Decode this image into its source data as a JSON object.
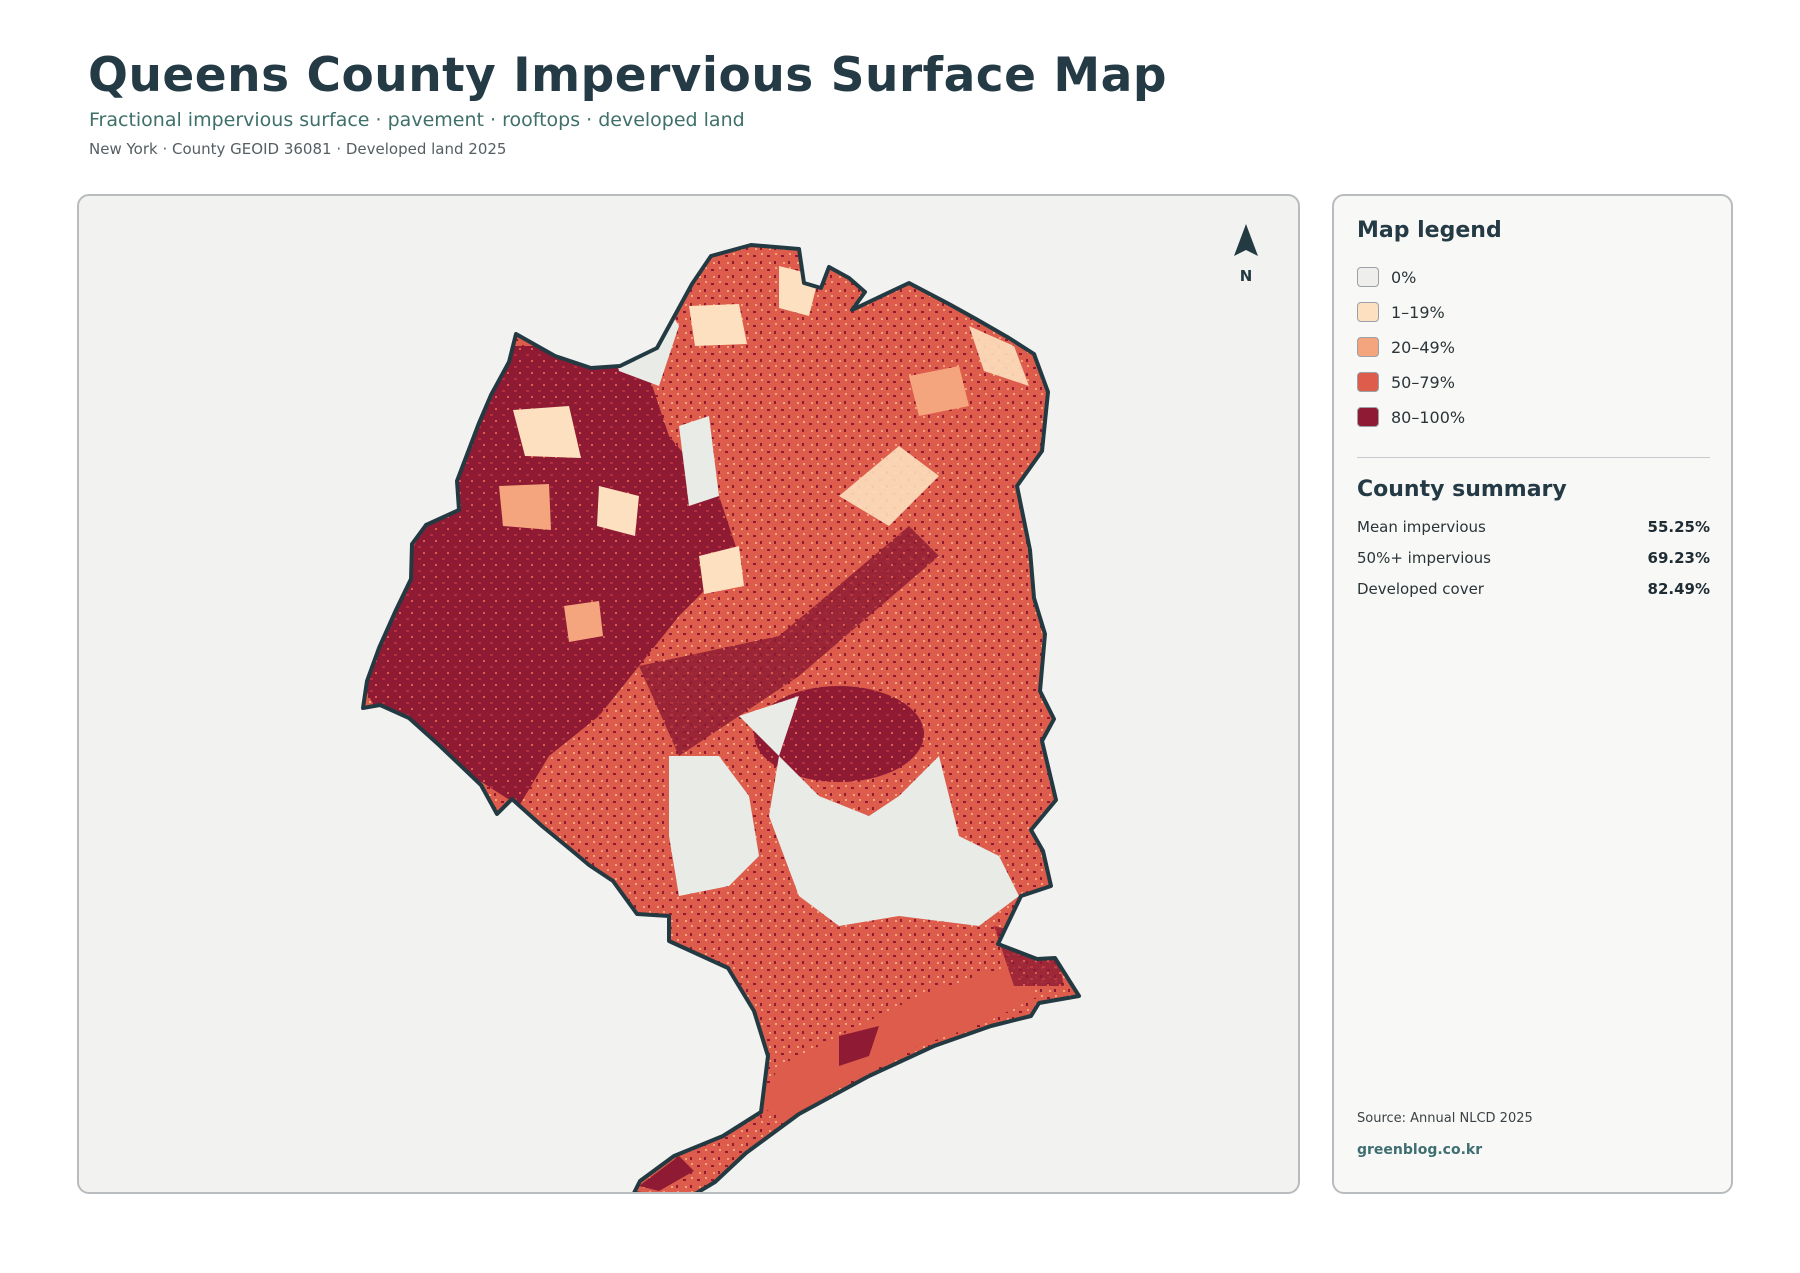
{
  "header": {
    "title": "Queens County Impervious Surface Map",
    "subtitle": "Fractional impervious surface · pavement · rooftops · developed land",
    "meta": "New York · County GEOID 36081 · Developed land 2025"
  },
  "map": {
    "north_label": "N",
    "colors": {
      "boundary": "#233a42",
      "water_inside": "#e8ebe6",
      "low": "#fde0bf",
      "mid_low": "#f4a57d",
      "mid_high": "#dd5c4b",
      "high": "#8e1b33"
    }
  },
  "legend": {
    "title": "Map legend",
    "items": [
      {
        "label": "0%",
        "color": "#eeeeec"
      },
      {
        "label": "1–19%",
        "color": "#fde0bf"
      },
      {
        "label": "20–49%",
        "color": "#f4a57d"
      },
      {
        "label": "50–79%",
        "color": "#dd5c4b"
      },
      {
        "label": "80–100%",
        "color": "#8e1b33"
      }
    ]
  },
  "summary": {
    "title": "County summary",
    "rows": [
      {
        "label": "Mean impervious",
        "value": "55.25%"
      },
      {
        "label": "50%+ impervious",
        "value": "69.23%"
      },
      {
        "label": "Developed cover",
        "value": "82.49%"
      }
    ]
  },
  "footer": {
    "source": "Source: Annual NLCD 2025",
    "credit": "greenblog.co.kr"
  }
}
